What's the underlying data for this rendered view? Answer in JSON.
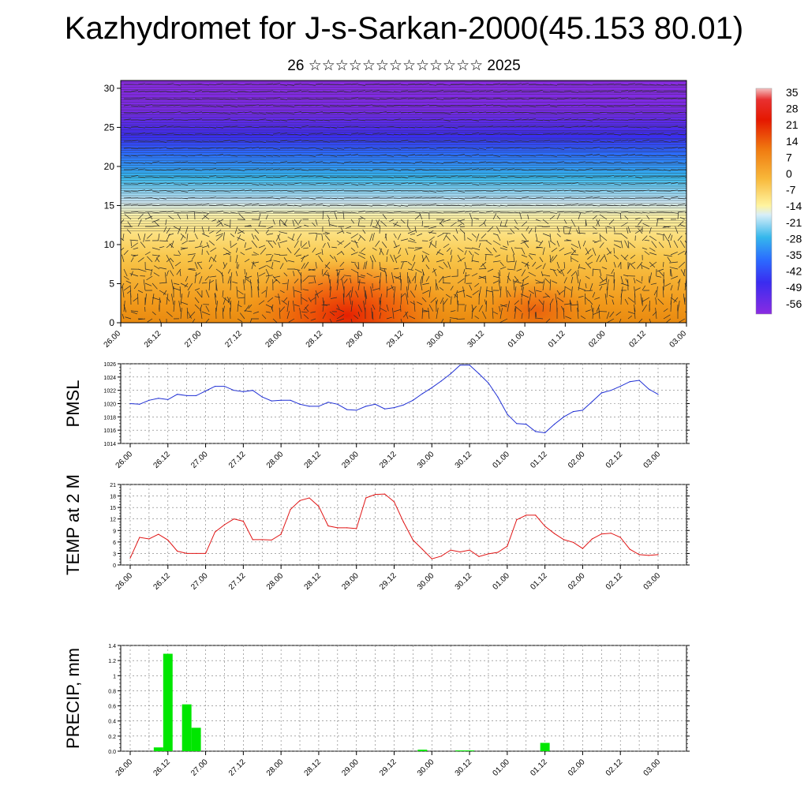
{
  "header": {
    "title": "Kazhydromet for J-s-Sarkan-2000(45.153 80.01)",
    "subtitle": "26 ☆☆☆☆☆☆☆☆☆☆☆☆☆ 2025"
  },
  "chart_data": [
    {
      "type": "heatmap",
      "title": "",
      "xlabel": "",
      "ylabel": "",
      "x_ticks": [
        "26.00",
        "26.12",
        "27.00",
        "27.12",
        "28.00",
        "28.12",
        "29.00",
        "29.12",
        "30.00",
        "30.12",
        "01.00",
        "01.12",
        "02.00",
        "02.12",
        "03.00"
      ],
      "y_ticks": [
        0,
        5,
        10,
        15,
        20,
        25,
        30
      ],
      "ylim": [
        0,
        31
      ],
      "colorbar_ticks": [
        35,
        28,
        21,
        14,
        7,
        0,
        -7,
        -14,
        -21,
        -28,
        -35,
        -42,
        -49,
        -56
      ],
      "colorbar_range": [
        -60,
        38
      ],
      "colors": {
        "hot": "#e51800",
        "warm": "#f5a623",
        "yellow": "#fff080",
        "cold": "#2a66ff",
        "coldest": "#8a20e0"
      },
      "overlay": "wind barbs"
    },
    {
      "type": "line",
      "ylabel": "PMSL",
      "ylim": [
        1014,
        1026
      ],
      "y_ticks": [
        1014,
        1016,
        1018,
        1020,
        1022,
        1024,
        1026
      ],
      "x_ticks": [
        "26.00",
        "26.12",
        "27.00",
        "27.12",
        "28.00",
        "28.12",
        "29.00",
        "29.12",
        "30.00",
        "30.12",
        "01.00",
        "01.12",
        "02.00",
        "02.12",
        "03.00"
      ],
      "grid": true,
      "color": "#1f2fd4",
      "x": [
        0,
        3,
        6,
        9,
        12,
        15,
        18,
        21,
        24,
        27,
        30,
        33,
        36,
        39,
        42,
        45,
        48,
        51,
        54,
        57,
        60,
        63,
        66,
        69,
        72,
        75,
        78,
        81,
        84,
        87,
        90,
        93,
        96,
        99,
        102,
        105,
        108,
        111,
        114,
        117,
        120,
        123,
        126,
        129,
        132,
        135,
        138,
        141,
        144,
        147,
        150,
        153,
        156,
        159,
        162,
        165,
        168
      ],
      "values": [
        1020,
        1019.9,
        1020.5,
        1020.8,
        1020.6,
        1021.4,
        1021.2,
        1021.2,
        1021.9,
        1022.6,
        1022.6,
        1022.0,
        1021.8,
        1022.0,
        1021.0,
        1020.4,
        1020.5,
        1020.5,
        1019.9,
        1019.6,
        1019.6,
        1020.2,
        1019.9,
        1019.1,
        1019.0,
        1019.6,
        1019.9,
        1019.2,
        1019.4,
        1019.8,
        1020.5,
        1021.5,
        1022.4,
        1023.4,
        1024.5,
        1025.8,
        1025.8,
        1024.5,
        1023.1,
        1021.0,
        1018.4,
        1017.0,
        1016.9,
        1015.8,
        1015.6,
        1016.9,
        1018.0,
        1018.8,
        1019.0,
        1020.3,
        1021.6,
        1022.0,
        1022.6,
        1023.3,
        1023.5,
        1022.2,
        1021.4
      ]
    },
    {
      "type": "line",
      "ylabel": "TEMP at 2 M",
      "ylim": [
        0,
        21
      ],
      "y_ticks": [
        0,
        3,
        6,
        9,
        12,
        15,
        18,
        21
      ],
      "x_ticks": [
        "26.00",
        "26.12",
        "27.00",
        "27.12",
        "28.00",
        "28.12",
        "29.00",
        "29.12",
        "30.00",
        "30.12",
        "01.00",
        "01.12",
        "02.00",
        "02.12",
        "03.00"
      ],
      "grid": true,
      "color": "#e01515",
      "x": [
        0,
        3,
        6,
        9,
        12,
        15,
        18,
        21,
        24,
        27,
        30,
        33,
        36,
        39,
        42,
        45,
        48,
        51,
        54,
        57,
        60,
        63,
        66,
        69,
        72,
        75,
        78,
        81,
        84,
        87,
        90,
        93,
        96,
        99,
        102,
        105,
        108,
        111,
        114,
        117,
        120,
        123,
        126,
        129,
        132,
        135,
        138,
        141,
        144,
        147,
        150,
        153,
        156,
        159,
        162,
        165,
        168
      ],
      "values": [
        1.8,
        7.2,
        6.8,
        8.0,
        6.5,
        3.6,
        3.0,
        3.0,
        3.0,
        8.6,
        10.5,
        12.0,
        11.4,
        6.6,
        6.6,
        6.5,
        8.0,
        14.5,
        16.8,
        17.5,
        15.3,
        10.2,
        9.7,
        9.7,
        9.5,
        17.5,
        18.4,
        18.5,
        16.5,
        11.2,
        6.5,
        4.1,
        1.6,
        2.3,
        3.9,
        3.4,
        3.9,
        2.2,
        2.9,
        3.3,
        4.9,
        11.8,
        13.0,
        13.0,
        10.1,
        8.2,
        6.6,
        5.9,
        4.3,
        6.8,
        8.1,
        8.3,
        7.2,
        4.1,
        2.7,
        2.5,
        2.7
      ]
    },
    {
      "type": "bar",
      "ylabel": "PRECIP, mm",
      "ylim": [
        0,
        1.4
      ],
      "y_ticks": [
        "0.0",
        "0.2",
        "0.4",
        "0.6",
        "0.8",
        "1",
        "1.2",
        "1.4"
      ],
      "x_ticks": [
        "26.00",
        "26.12",
        "27.00",
        "27.12",
        "28.00",
        "28.12",
        "29.00",
        "29.12",
        "30.00",
        "30.12",
        "01.00",
        "01.12",
        "02.00",
        "02.12",
        "03.00"
      ],
      "grid": true,
      "color": "#00e600",
      "bar_width_hours": 3,
      "x": [
        9,
        12,
        18,
        21,
        93,
        105,
        108,
        132
      ],
      "values": [
        0.05,
        1.29,
        0.62,
        0.31,
        0.02,
        0.01,
        0.01,
        0.11
      ]
    }
  ]
}
